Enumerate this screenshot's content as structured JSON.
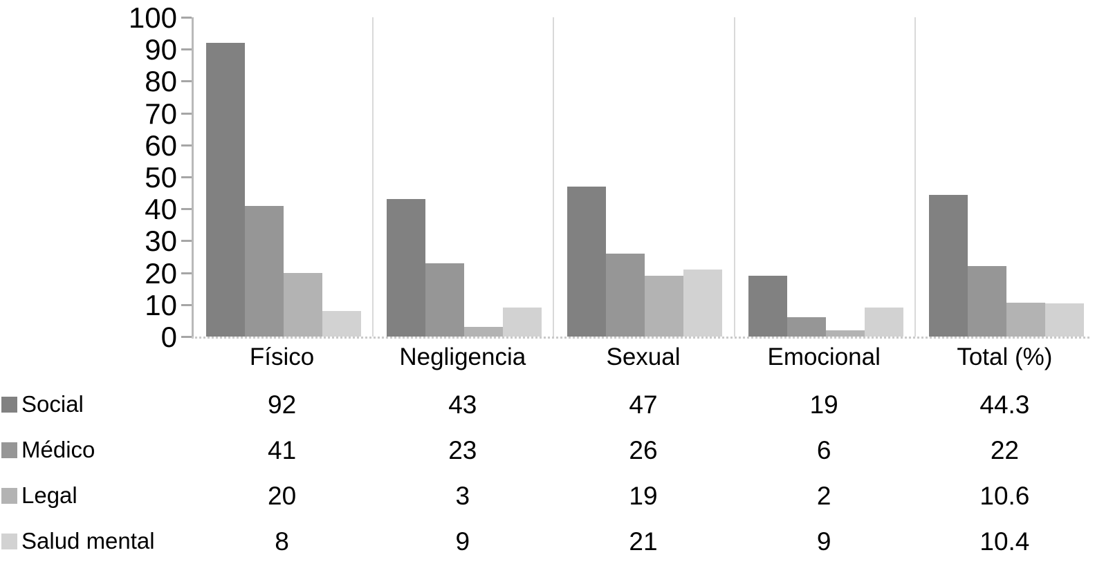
{
  "chart_data": {
    "type": "bar",
    "title": "",
    "xlabel": "",
    "ylabel": "",
    "categories": [
      "Físico",
      "Negligencia",
      "Sexual",
      "Emocional",
      "Total (%)"
    ],
    "series": [
      {
        "name": "Social",
        "color": "#818181",
        "values": [
          92,
          43,
          47,
          19,
          44.3
        ],
        "display": [
          "92",
          "43",
          "47",
          "19",
          "44.3"
        ]
      },
      {
        "name": "Médico",
        "color": "#969696",
        "values": [
          41,
          23,
          26,
          6,
          22
        ],
        "display": [
          "41",
          "23",
          "26",
          "6",
          "22"
        ]
      },
      {
        "name": "Legal",
        "color": "#b3b3b3",
        "values": [
          20,
          3,
          19,
          2,
          10.6
        ],
        "display": [
          "20",
          "3",
          "19",
          "2",
          "10.6"
        ]
      },
      {
        "name": "Salud mental",
        "color": "#d2d2d2",
        "values": [
          8,
          9,
          21,
          9,
          10.4
        ],
        "display": [
          "8",
          "9",
          "21",
          "9",
          "10.4"
        ]
      }
    ],
    "ylim": [
      0,
      100
    ],
    "yticks": [
      0,
      10,
      20,
      30,
      40,
      50,
      60,
      70,
      80,
      90,
      100
    ],
    "grid": false,
    "group_separators": true,
    "legend_position": "table-left-below",
    "axis_color": "#b9b9b9",
    "separator_color": "#d9d9d9",
    "baseline_style": "dotted"
  }
}
